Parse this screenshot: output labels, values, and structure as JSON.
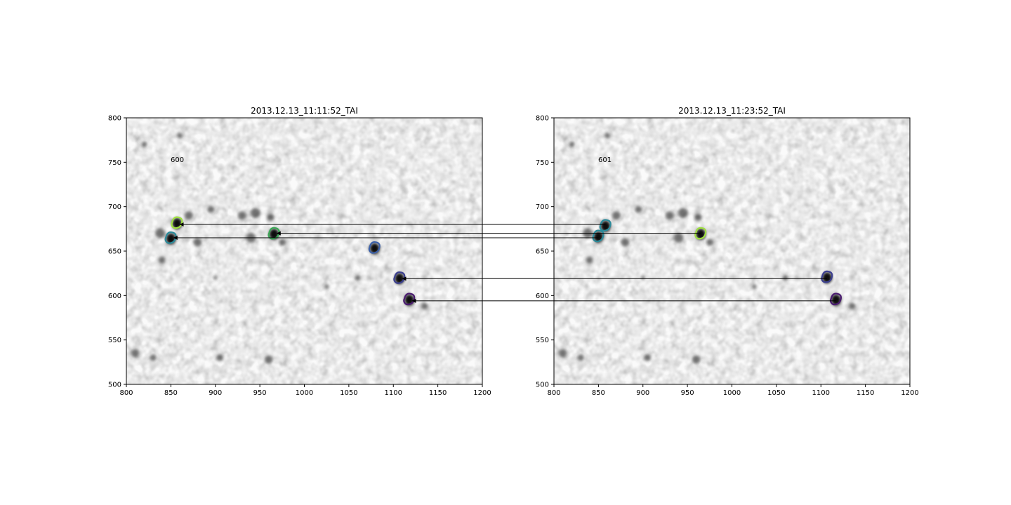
{
  "panels": [
    {
      "title": "2013.12.13_11:11:52_TAI",
      "frame_label": "600",
      "xlim": [
        800,
        1200
      ],
      "ylim": [
        500,
        800
      ],
      "xticks": [
        "800",
        "850",
        "900",
        "950",
        "1000",
        "1050",
        "1100",
        "1150",
        "1200"
      ],
      "yticks": [
        "500",
        "550",
        "600",
        "650",
        "700",
        "750",
        "800"
      ],
      "features": [
        {
          "name": "lime",
          "x": 857,
          "y": 681,
          "color": "#9fe040"
        },
        {
          "name": "teal",
          "x": 850,
          "y": 664,
          "color": "#2a8a9a"
        },
        {
          "name": "green",
          "x": 966,
          "y": 669,
          "color": "#3aa855"
        },
        {
          "name": "blue",
          "x": 1079,
          "y": 653,
          "color": "#3a5fa8"
        },
        {
          "name": "indigo",
          "x": 1107,
          "y": 619,
          "color": "#3b3f8f"
        },
        {
          "name": "purple",
          "x": 1118,
          "y": 595,
          "color": "#4a1a70"
        }
      ]
    },
    {
      "title": "2013.12.13_11:23:52_TAI",
      "frame_label": "601",
      "xlim": [
        800,
        1200
      ],
      "ylim": [
        500,
        800
      ],
      "xticks": [
        "800",
        "850",
        "900",
        "950",
        "1000",
        "1050",
        "1100",
        "1150",
        "1200"
      ],
      "yticks": [
        "500",
        "550",
        "600",
        "650",
        "700",
        "750",
        "800"
      ],
      "features": [
        {
          "name": "teal2",
          "x": 858,
          "y": 678,
          "color": "#2a8a9a"
        },
        {
          "name": "teal",
          "x": 850,
          "y": 666,
          "color": "#2a8a9a"
        },
        {
          "name": "lime",
          "x": 965,
          "y": 669,
          "color": "#9fe040"
        },
        {
          "name": "indigo",
          "x": 1107,
          "y": 620,
          "color": "#3b3f8f"
        },
        {
          "name": "purple",
          "x": 1117,
          "y": 595,
          "color": "#4a1a70"
        }
      ]
    }
  ],
  "links": [
    {
      "y1": 680,
      "y2": 680
    },
    {
      "y1": 670,
      "y2": 670
    },
    {
      "y1": 665,
      "y2": 665
    },
    {
      "y1": 619,
      "y2": 619
    },
    {
      "y1": 594,
      "y2": 594
    }
  ]
}
